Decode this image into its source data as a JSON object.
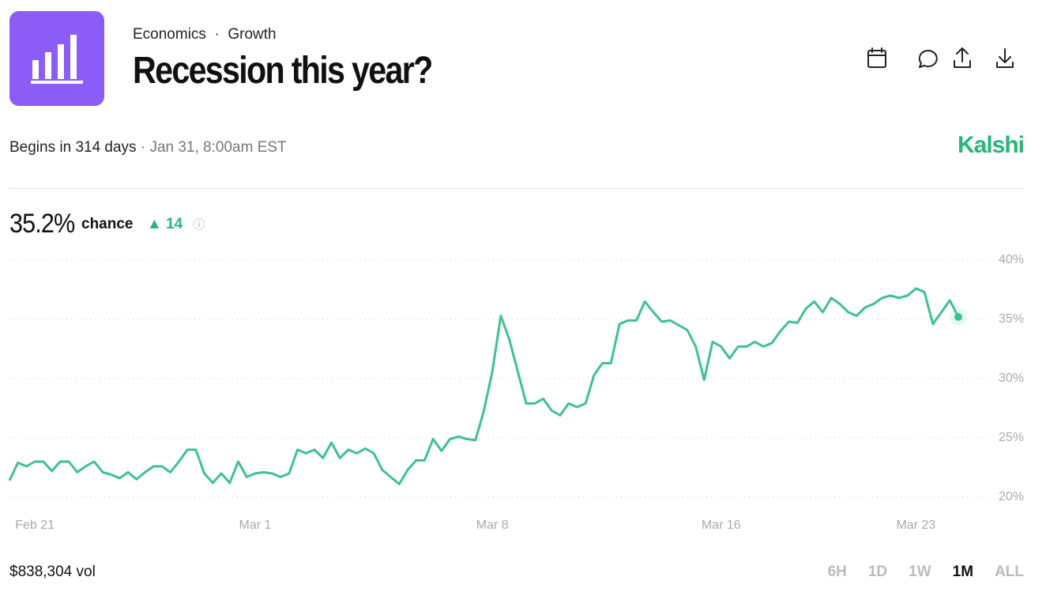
{
  "header": {
    "category": "Economics",
    "subcategory": "Growth",
    "title": "Recession this year?"
  },
  "schedule": {
    "begins": "Begins in 314 days",
    "date": "Jan 31, 8:00am EST"
  },
  "brand": "Kalshi",
  "summary": {
    "current": "35.2%",
    "label": "chance",
    "change": 14
  },
  "volume": "$838,304 vol",
  "ranges": [
    "6H",
    "1D",
    "1W",
    "1M",
    "ALL"
  ],
  "active_range": "1M",
  "chart_data": {
    "type": "line",
    "color": "#3ec28f",
    "grid": true,
    "values": [
      21.4,
      22.9,
      22.6,
      23.0,
      23.0,
      22.2,
      23.0,
      23.0,
      22.1,
      22.6,
      23.0,
      22.1,
      21.9,
      21.6,
      22.1,
      21.5,
      22.1,
      22.6,
      22.6,
      22.1,
      23.0,
      24.0,
      24.0,
      22.0,
      21.2,
      22.0,
      21.2,
      23.0,
      21.7,
      22.0,
      22.1,
      22.0,
      21.7,
      22.0,
      24.0,
      23.7,
      24.0,
      23.3,
      24.6,
      23.3,
      24.0,
      23.7,
      24.1,
      23.7,
      22.3,
      21.7,
      21.1,
      22.3,
      23.1,
      23.1,
      24.9,
      23.9,
      24.9,
      25.1,
      24.9,
      24.8,
      27.3,
      30.6,
      35.3,
      33.3,
      30.6,
      27.9,
      27.9,
      28.3,
      27.3,
      26.9,
      27.9,
      27.6,
      27.9,
      30.3,
      31.3,
      31.3,
      34.6,
      34.9,
      34.9,
      36.5,
      35.6,
      34.8,
      34.9,
      34.5,
      34.1,
      32.7,
      29.9,
      33.1,
      32.7,
      31.7,
      32.7,
      32.7,
      33.1,
      32.7,
      33.0,
      34.0,
      34.8,
      34.7,
      35.9,
      36.5,
      35.6,
      36.8,
      36.3,
      35.6,
      35.3,
      36.0,
      36.3,
      36.8,
      37.0,
      36.8,
      37.0,
      37.6,
      37.3,
      34.6,
      35.6,
      36.6,
      35.2
    ],
    "xlim": [
      0,
      112
    ],
    "xticks": [
      {
        "value": 3,
        "label": "Feb 21"
      },
      {
        "value": 29,
        "label": "Mar 1"
      },
      {
        "value": 57,
        "label": "Mar 8"
      },
      {
        "value": 84,
        "label": "Mar 16"
      },
      {
        "value": 107,
        "label": "Mar 23"
      }
    ],
    "ylim": [
      20,
      40
    ],
    "yticks": [
      {
        "value": 20,
        "label": "20%"
      },
      {
        "value": 25,
        "label": "25%"
      },
      {
        "value": 30,
        "label": "30%"
      },
      {
        "value": 35,
        "label": "35%"
      },
      {
        "value": 40,
        "label": "40%"
      }
    ]
  }
}
